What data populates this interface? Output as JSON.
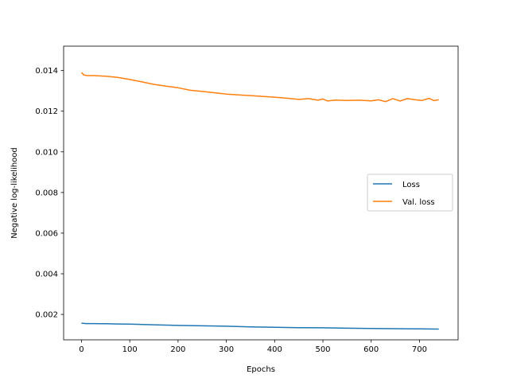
{
  "chart_data": {
    "type": "line",
    "title": "",
    "xlabel": "Epochs",
    "ylabel": "Negative log-likelihood",
    "xlim": [
      -37,
      780
    ],
    "ylim": [
      0.00075,
      0.0152
    ],
    "xticks": [
      0,
      100,
      200,
      300,
      400,
      500,
      600,
      700
    ],
    "xtick_labels": [
      "0",
      "100",
      "200",
      "300",
      "400",
      "500",
      "600",
      "700"
    ],
    "yticks": [
      0.002,
      0.004,
      0.006,
      0.008,
      0.01,
      0.012,
      0.014
    ],
    "ytick_labels": [
      "0.002",
      "0.004",
      "0.006",
      "0.008",
      "0.010",
      "0.012",
      "0.014"
    ],
    "grid": false,
    "legend_position": "center-right",
    "series": [
      {
        "name": "Loss",
        "color": "#1f77b4",
        "x": [
          0,
          10,
          25,
          50,
          75,
          100,
          150,
          200,
          250,
          300,
          350,
          400,
          450,
          500,
          550,
          600,
          650,
          700,
          740
        ],
        "y": [
          0.00157,
          0.00155,
          0.00155,
          0.00154,
          0.00153,
          0.00152,
          0.00149,
          0.00146,
          0.00144,
          0.00142,
          0.00139,
          0.00137,
          0.00135,
          0.00134,
          0.00132,
          0.00131,
          0.0013,
          0.00129,
          0.00128
        ]
      },
      {
        "name": "Val. loss",
        "color": "#ff7f0e",
        "x": [
          0,
          5,
          12,
          25,
          50,
          75,
          100,
          125,
          150,
          175,
          200,
          225,
          250,
          275,
          300,
          325,
          350,
          375,
          400,
          425,
          450,
          470,
          490,
          500,
          510,
          525,
          550,
          575,
          600,
          615,
          630,
          645,
          660,
          675,
          690,
          705,
          720,
          730,
          740
        ],
        "y": [
          0.0139,
          0.01378,
          0.01375,
          0.01375,
          0.01372,
          0.01366,
          0.01356,
          0.01344,
          0.01332,
          0.01323,
          0.01315,
          0.01303,
          0.01297,
          0.01291,
          0.01284,
          0.0128,
          0.01277,
          0.01273,
          0.01269,
          0.01264,
          0.01258,
          0.01262,
          0.01254,
          0.0126,
          0.0125,
          0.01255,
          0.01253,
          0.01254,
          0.01251,
          0.01256,
          0.01247,
          0.01262,
          0.0125,
          0.01262,
          0.01257,
          0.01253,
          0.01263,
          0.01252,
          0.01256
        ]
      }
    ]
  }
}
